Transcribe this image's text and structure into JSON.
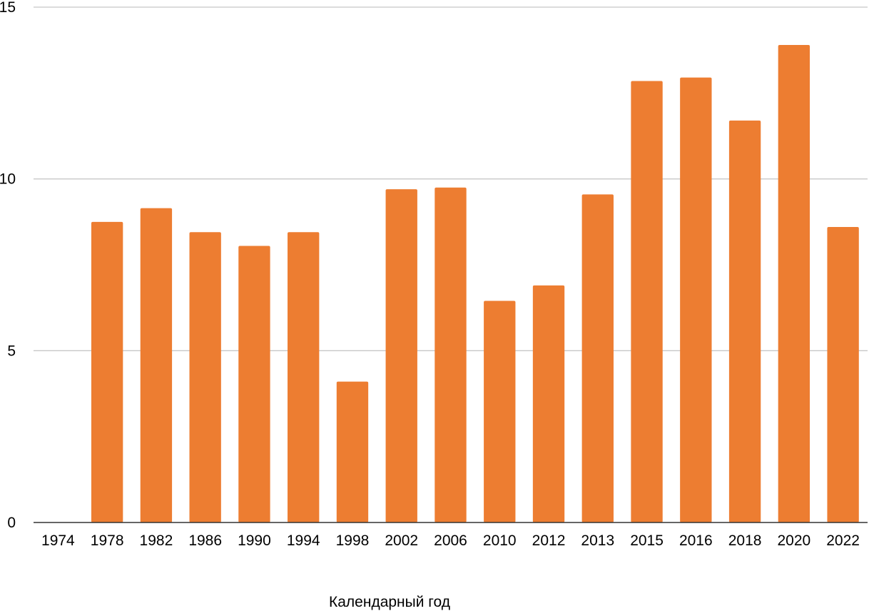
{
  "chart_data": {
    "type": "bar",
    "xlabel": "Календарный год",
    "ylabel": "",
    "ylim": [
      0,
      15
    ],
    "yticks": [
      "0",
      "5",
      "10",
      "15"
    ],
    "grid": true,
    "legend": "none",
    "bar_color": "#ed7d31",
    "categories": [
      "1974",
      "1978",
      "1982",
      "1986",
      "1990",
      "1994",
      "1998",
      "2002",
      "2006",
      "2010",
      "2012",
      "2013",
      "2015",
      "2016",
      "2018",
      "2020",
      "2022"
    ],
    "values": [
      0,
      8.75,
      9.15,
      8.45,
      8.05,
      8.45,
      4.1,
      9.7,
      9.75,
      6.45,
      6.9,
      9.55,
      12.85,
      12.95,
      11.7,
      13.9,
      8.6
    ]
  }
}
